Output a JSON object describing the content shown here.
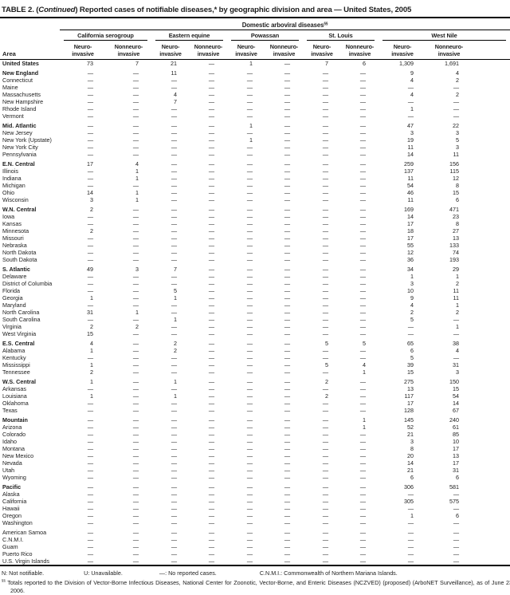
{
  "title": {
    "pre": "TABLE 2. (",
    "italic": "Continued",
    "post": ") Reported cases of notifiable diseases,* by geographic division and area — United States, 2005"
  },
  "header": {
    "span_label": "Domestic arboviral diseases",
    "span_sup": "§§",
    "area_label": "Area",
    "groups": [
      "California serogroup",
      "Eastern equine",
      "Powassan",
      "St. Louis",
      "West Nile"
    ],
    "neuro": {
      "l1": "Neuro-",
      "l2": "invasive"
    },
    "nonneuro": {
      "l1": "Nonneuro-",
      "l2": "invasive"
    }
  },
  "rows": [
    {
      "area": "United States",
      "bold": true,
      "gap": false,
      "values": [
        "73",
        "7",
        "21",
        "—",
        "1",
        "—",
        "7",
        "6",
        "1,309",
        "1,691"
      ]
    },
    {
      "area": "New England",
      "bold": true,
      "gap": true,
      "values": [
        "—",
        "—",
        "11",
        "—",
        "—",
        "—",
        "—",
        "—",
        "9",
        "4"
      ]
    },
    {
      "area": "Connecticut",
      "bold": false,
      "gap": false,
      "values": [
        "—",
        "—",
        "—",
        "—",
        "—",
        "—",
        "—",
        "—",
        "4",
        "2"
      ]
    },
    {
      "area": "Maine",
      "bold": false,
      "gap": false,
      "values": [
        "—",
        "—",
        "—",
        "—",
        "—",
        "—",
        "—",
        "—",
        "—",
        "—"
      ]
    },
    {
      "area": "Massachusetts",
      "bold": false,
      "gap": false,
      "values": [
        "—",
        "—",
        "4",
        "—",
        "—",
        "—",
        "—",
        "—",
        "4",
        "2"
      ]
    },
    {
      "area": "New Hampshire",
      "bold": false,
      "gap": false,
      "values": [
        "—",
        "—",
        "7",
        "—",
        "—",
        "—",
        "—",
        "—",
        "—",
        "—"
      ]
    },
    {
      "area": "Rhode Island",
      "bold": false,
      "gap": false,
      "values": [
        "—",
        "—",
        "—",
        "—",
        "—",
        "—",
        "—",
        "—",
        "1",
        "—"
      ]
    },
    {
      "area": "Vermont",
      "bold": false,
      "gap": false,
      "values": [
        "—",
        "—",
        "—",
        "—",
        "—",
        "—",
        "—",
        "—",
        "—",
        "—"
      ]
    },
    {
      "area": "Mid. Atlantic",
      "bold": true,
      "gap": true,
      "values": [
        "—",
        "—",
        "—",
        "—",
        "1",
        "—",
        "—",
        "—",
        "47",
        "22"
      ]
    },
    {
      "area": "New Jersey",
      "bold": false,
      "gap": false,
      "values": [
        "—",
        "—",
        "—",
        "—",
        "—",
        "—",
        "—",
        "—",
        "3",
        "3"
      ]
    },
    {
      "area": "New York (Upstate)",
      "bold": false,
      "gap": false,
      "values": [
        "—",
        "—",
        "—",
        "—",
        "1",
        "—",
        "—",
        "—",
        "19",
        "5"
      ]
    },
    {
      "area": "New York City",
      "bold": false,
      "gap": false,
      "values": [
        "—",
        "—",
        "—",
        "—",
        "—",
        "—",
        "—",
        "—",
        "11",
        "3"
      ]
    },
    {
      "area": "Pennsylvania",
      "bold": false,
      "gap": false,
      "values": [
        "—",
        "—",
        "—",
        "—",
        "—",
        "—",
        "—",
        "—",
        "14",
        "11"
      ]
    },
    {
      "area": "E.N. Central",
      "bold": true,
      "gap": true,
      "values": [
        "17",
        "4",
        "—",
        "—",
        "—",
        "—",
        "—",
        "—",
        "259",
        "156"
      ]
    },
    {
      "area": "Illinois",
      "bold": false,
      "gap": false,
      "values": [
        "—",
        "1",
        "—",
        "—",
        "—",
        "—",
        "—",
        "—",
        "137",
        "115"
      ]
    },
    {
      "area": "Indiana",
      "bold": false,
      "gap": false,
      "values": [
        "—",
        "1",
        "—",
        "—",
        "—",
        "—",
        "—",
        "—",
        "11",
        "12"
      ]
    },
    {
      "area": "Michigan",
      "bold": false,
      "gap": false,
      "values": [
        "—",
        "—",
        "—",
        "—",
        "—",
        "—",
        "—",
        "—",
        "54",
        "8"
      ]
    },
    {
      "area": "Ohio",
      "bold": false,
      "gap": false,
      "values": [
        "14",
        "1",
        "—",
        "—",
        "—",
        "—",
        "—",
        "—",
        "46",
        "15"
      ]
    },
    {
      "area": "Wisconsin",
      "bold": false,
      "gap": false,
      "values": [
        "3",
        "1",
        "—",
        "—",
        "—",
        "—",
        "—",
        "—",
        "11",
        "6"
      ]
    },
    {
      "area": "W.N. Central",
      "bold": true,
      "gap": true,
      "values": [
        "2",
        "—",
        "—",
        "—",
        "—",
        "—",
        "—",
        "—",
        "169",
        "471"
      ]
    },
    {
      "area": "Iowa",
      "bold": false,
      "gap": false,
      "values": [
        "—",
        "—",
        "—",
        "—",
        "—",
        "—",
        "—",
        "—",
        "14",
        "23"
      ]
    },
    {
      "area": "Kansas",
      "bold": false,
      "gap": false,
      "values": [
        "—",
        "—",
        "—",
        "—",
        "—",
        "—",
        "—",
        "—",
        "17",
        "8"
      ]
    },
    {
      "area": "Minnesota",
      "bold": false,
      "gap": false,
      "values": [
        "2",
        "—",
        "—",
        "—",
        "—",
        "—",
        "—",
        "—",
        "18",
        "27"
      ]
    },
    {
      "area": "Missouri",
      "bold": false,
      "gap": false,
      "values": [
        "—",
        "—",
        "—",
        "—",
        "—",
        "—",
        "—",
        "—",
        "17",
        "13"
      ]
    },
    {
      "area": "Nebraska",
      "bold": false,
      "gap": false,
      "values": [
        "—",
        "—",
        "—",
        "—",
        "—",
        "—",
        "—",
        "—",
        "55",
        "133"
      ]
    },
    {
      "area": "North Dakota",
      "bold": false,
      "gap": false,
      "values": [
        "—",
        "—",
        "—",
        "—",
        "—",
        "—",
        "—",
        "—",
        "12",
        "74"
      ]
    },
    {
      "area": "South Dakota",
      "bold": false,
      "gap": false,
      "values": [
        "—",
        "—",
        "—",
        "—",
        "—",
        "—",
        "—",
        "—",
        "36",
        "193"
      ]
    },
    {
      "area": "S. Atlantic",
      "bold": true,
      "gap": true,
      "values": [
        "49",
        "3",
        "7",
        "—",
        "—",
        "—",
        "—",
        "—",
        "34",
        "29"
      ]
    },
    {
      "area": "Delaware",
      "bold": false,
      "gap": false,
      "values": [
        "—",
        "—",
        "—",
        "—",
        "—",
        "—",
        "—",
        "—",
        "1",
        "1"
      ]
    },
    {
      "area": "District of Columbia",
      "bold": false,
      "gap": false,
      "values": [
        "—",
        "—",
        "—",
        "—",
        "—",
        "—",
        "—",
        "—",
        "3",
        "2"
      ]
    },
    {
      "area": "Florida",
      "bold": false,
      "gap": false,
      "values": [
        "—",
        "—",
        "5",
        "—",
        "—",
        "—",
        "—",
        "—",
        "10",
        "11"
      ]
    },
    {
      "area": "Georgia",
      "bold": false,
      "gap": false,
      "values": [
        "1",
        "—",
        "1",
        "—",
        "—",
        "—",
        "—",
        "—",
        "9",
        "11"
      ]
    },
    {
      "area": "Maryland",
      "bold": false,
      "gap": false,
      "values": [
        "—",
        "—",
        "—",
        "—",
        "—",
        "—",
        "—",
        "—",
        "4",
        "1"
      ]
    },
    {
      "area": "North Carolina",
      "bold": false,
      "gap": false,
      "values": [
        "31",
        "1",
        "—",
        "—",
        "—",
        "—",
        "—",
        "—",
        "2",
        "2"
      ]
    },
    {
      "area": "South Carolina",
      "bold": false,
      "gap": false,
      "values": [
        "—",
        "—",
        "1",
        "—",
        "—",
        "—",
        "—",
        "—",
        "5",
        "—"
      ]
    },
    {
      "area": "Virginia",
      "bold": false,
      "gap": false,
      "values": [
        "2",
        "2",
        "—",
        "—",
        "—",
        "—",
        "—",
        "—",
        "—",
        "1"
      ]
    },
    {
      "area": "West Virginia",
      "bold": false,
      "gap": false,
      "values": [
        "15",
        "—",
        "—",
        "—",
        "—",
        "—",
        "—",
        "—",
        "—",
        "—"
      ]
    },
    {
      "area": "E.S. Central",
      "bold": true,
      "gap": true,
      "values": [
        "4",
        "—",
        "2",
        "—",
        "—",
        "—",
        "5",
        "5",
        "65",
        "38"
      ]
    },
    {
      "area": "Alabama",
      "bold": false,
      "gap": false,
      "values": [
        "1",
        "—",
        "2",
        "—",
        "—",
        "—",
        "—",
        "—",
        "6",
        "4"
      ]
    },
    {
      "area": "Kentucky",
      "bold": false,
      "gap": false,
      "values": [
        "—",
        "—",
        "—",
        "—",
        "—",
        "—",
        "—",
        "—",
        "5",
        "—"
      ]
    },
    {
      "area": "Mississippi",
      "bold": false,
      "gap": false,
      "values": [
        "1",
        "—",
        "—",
        "—",
        "—",
        "—",
        "5",
        "4",
        "39",
        "31"
      ]
    },
    {
      "area": "Tennessee",
      "bold": false,
      "gap": false,
      "values": [
        "2",
        "—",
        "—",
        "—",
        "—",
        "—",
        "—",
        "1",
        "15",
        "3"
      ]
    },
    {
      "area": "W.S. Central",
      "bold": true,
      "gap": true,
      "values": [
        "1",
        "—",
        "1",
        "—",
        "—",
        "—",
        "2",
        "—",
        "275",
        "150"
      ]
    },
    {
      "area": "Arkansas",
      "bold": false,
      "gap": false,
      "values": [
        "—",
        "—",
        "—",
        "—",
        "—",
        "—",
        "—",
        "—",
        "13",
        "15"
      ]
    },
    {
      "area": "Louisiana",
      "bold": false,
      "gap": false,
      "values": [
        "1",
        "—",
        "1",
        "—",
        "—",
        "—",
        "2",
        "—",
        "117",
        "54"
      ]
    },
    {
      "area": "Oklahoma",
      "bold": false,
      "gap": false,
      "values": [
        "—",
        "—",
        "—",
        "—",
        "—",
        "—",
        "—",
        "—",
        "17",
        "14"
      ]
    },
    {
      "area": "Texas",
      "bold": false,
      "gap": false,
      "values": [
        "—",
        "—",
        "—",
        "—",
        "—",
        "—",
        "—",
        "—",
        "128",
        "67"
      ]
    },
    {
      "area": "Mountain",
      "bold": true,
      "gap": true,
      "values": [
        "—",
        "—",
        "—",
        "—",
        "—",
        "—",
        "—",
        "1",
        "145",
        "240"
      ]
    },
    {
      "area": "Arizona",
      "bold": false,
      "gap": false,
      "values": [
        "—",
        "—",
        "—",
        "—",
        "—",
        "—",
        "—",
        "1",
        "52",
        "61"
      ]
    },
    {
      "area": "Colorado",
      "bold": false,
      "gap": false,
      "values": [
        "—",
        "—",
        "—",
        "—",
        "—",
        "—",
        "—",
        "—",
        "21",
        "85"
      ]
    },
    {
      "area": "Idaho",
      "bold": false,
      "gap": false,
      "values": [
        "—",
        "—",
        "—",
        "—",
        "—",
        "—",
        "—",
        "—",
        "3",
        "10"
      ]
    },
    {
      "area": "Montana",
      "bold": false,
      "gap": false,
      "values": [
        "—",
        "—",
        "—",
        "—",
        "—",
        "—",
        "—",
        "—",
        "8",
        "17"
      ]
    },
    {
      "area": "New Mexico",
      "bold": false,
      "gap": false,
      "values": [
        "—",
        "—",
        "—",
        "—",
        "—",
        "—",
        "—",
        "—",
        "20",
        "13"
      ]
    },
    {
      "area": "Nevada",
      "bold": false,
      "gap": false,
      "values": [
        "—",
        "—",
        "—",
        "—",
        "—",
        "—",
        "—",
        "—",
        "14",
        "17"
      ]
    },
    {
      "area": "Utah",
      "bold": false,
      "gap": false,
      "values": [
        "—",
        "—",
        "—",
        "—",
        "—",
        "—",
        "—",
        "—",
        "21",
        "31"
      ]
    },
    {
      "area": "Wyoming",
      "bold": false,
      "gap": false,
      "values": [
        "—",
        "—",
        "—",
        "—",
        "—",
        "—",
        "—",
        "—",
        "6",
        "6"
      ]
    },
    {
      "area": "Pacific",
      "bold": true,
      "gap": true,
      "values": [
        "—",
        "—",
        "—",
        "—",
        "—",
        "—",
        "—",
        "—",
        "306",
        "581"
      ]
    },
    {
      "area": "Alaska",
      "bold": false,
      "gap": false,
      "values": [
        "—",
        "—",
        "—",
        "—",
        "—",
        "—",
        "—",
        "—",
        "—",
        "—"
      ]
    },
    {
      "area": "California",
      "bold": false,
      "gap": false,
      "values": [
        "—",
        "—",
        "—",
        "—",
        "—",
        "—",
        "—",
        "—",
        "305",
        "575"
      ]
    },
    {
      "area": "Hawaii",
      "bold": false,
      "gap": false,
      "values": [
        "—",
        "—",
        "—",
        "—",
        "—",
        "—",
        "—",
        "—",
        "—",
        "—"
      ]
    },
    {
      "area": "Oregon",
      "bold": false,
      "gap": false,
      "values": [
        "—",
        "—",
        "—",
        "—",
        "—",
        "—",
        "—",
        "—",
        "1",
        "6"
      ]
    },
    {
      "area": "Washington",
      "bold": false,
      "gap": false,
      "values": [
        "—",
        "—",
        "—",
        "—",
        "—",
        "—",
        "—",
        "—",
        "—",
        "—"
      ]
    },
    {
      "area": "American Samoa",
      "bold": false,
      "gap": true,
      "values": [
        "—",
        "—",
        "—",
        "—",
        "—",
        "—",
        "—",
        "—",
        "—",
        "—"
      ]
    },
    {
      "area": "C.N.M.I.",
      "bold": false,
      "gap": false,
      "values": [
        "—",
        "—",
        "—",
        "—",
        "—",
        "—",
        "—",
        "—",
        "—",
        "—"
      ]
    },
    {
      "area": "Guam",
      "bold": false,
      "gap": false,
      "values": [
        "—",
        "—",
        "—",
        "—",
        "—",
        "—",
        "—",
        "—",
        "—",
        "—"
      ]
    },
    {
      "area": "Puerto Rico",
      "bold": false,
      "gap": false,
      "values": [
        "—",
        "—",
        "—",
        "—",
        "—",
        "—",
        "—",
        "—",
        "—",
        "—"
      ]
    },
    {
      "area": "U.S. Virgin Islands",
      "bold": false,
      "gap": false,
      "values": [
        "—",
        "—",
        "—",
        "—",
        "—",
        "—",
        "—",
        "—",
        "—",
        "—"
      ]
    }
  ],
  "footnotes": {
    "line1": [
      "N: Not notifiable.",
      "U: Unavailable.",
      "—: No reported cases.",
      "C.N.M.I.: Commonwealth of Northern Mariana Islands."
    ],
    "line2_marker": "§§",
    "line2": " Totals reported to the Division of Vector-Borne Infectious Diseases, National Center for Zoonotic, Vector-Borne, and Enteric Diseases (NCZVED) (proposed) (ArboNET Surveillance), as of June 23, 2006."
  }
}
